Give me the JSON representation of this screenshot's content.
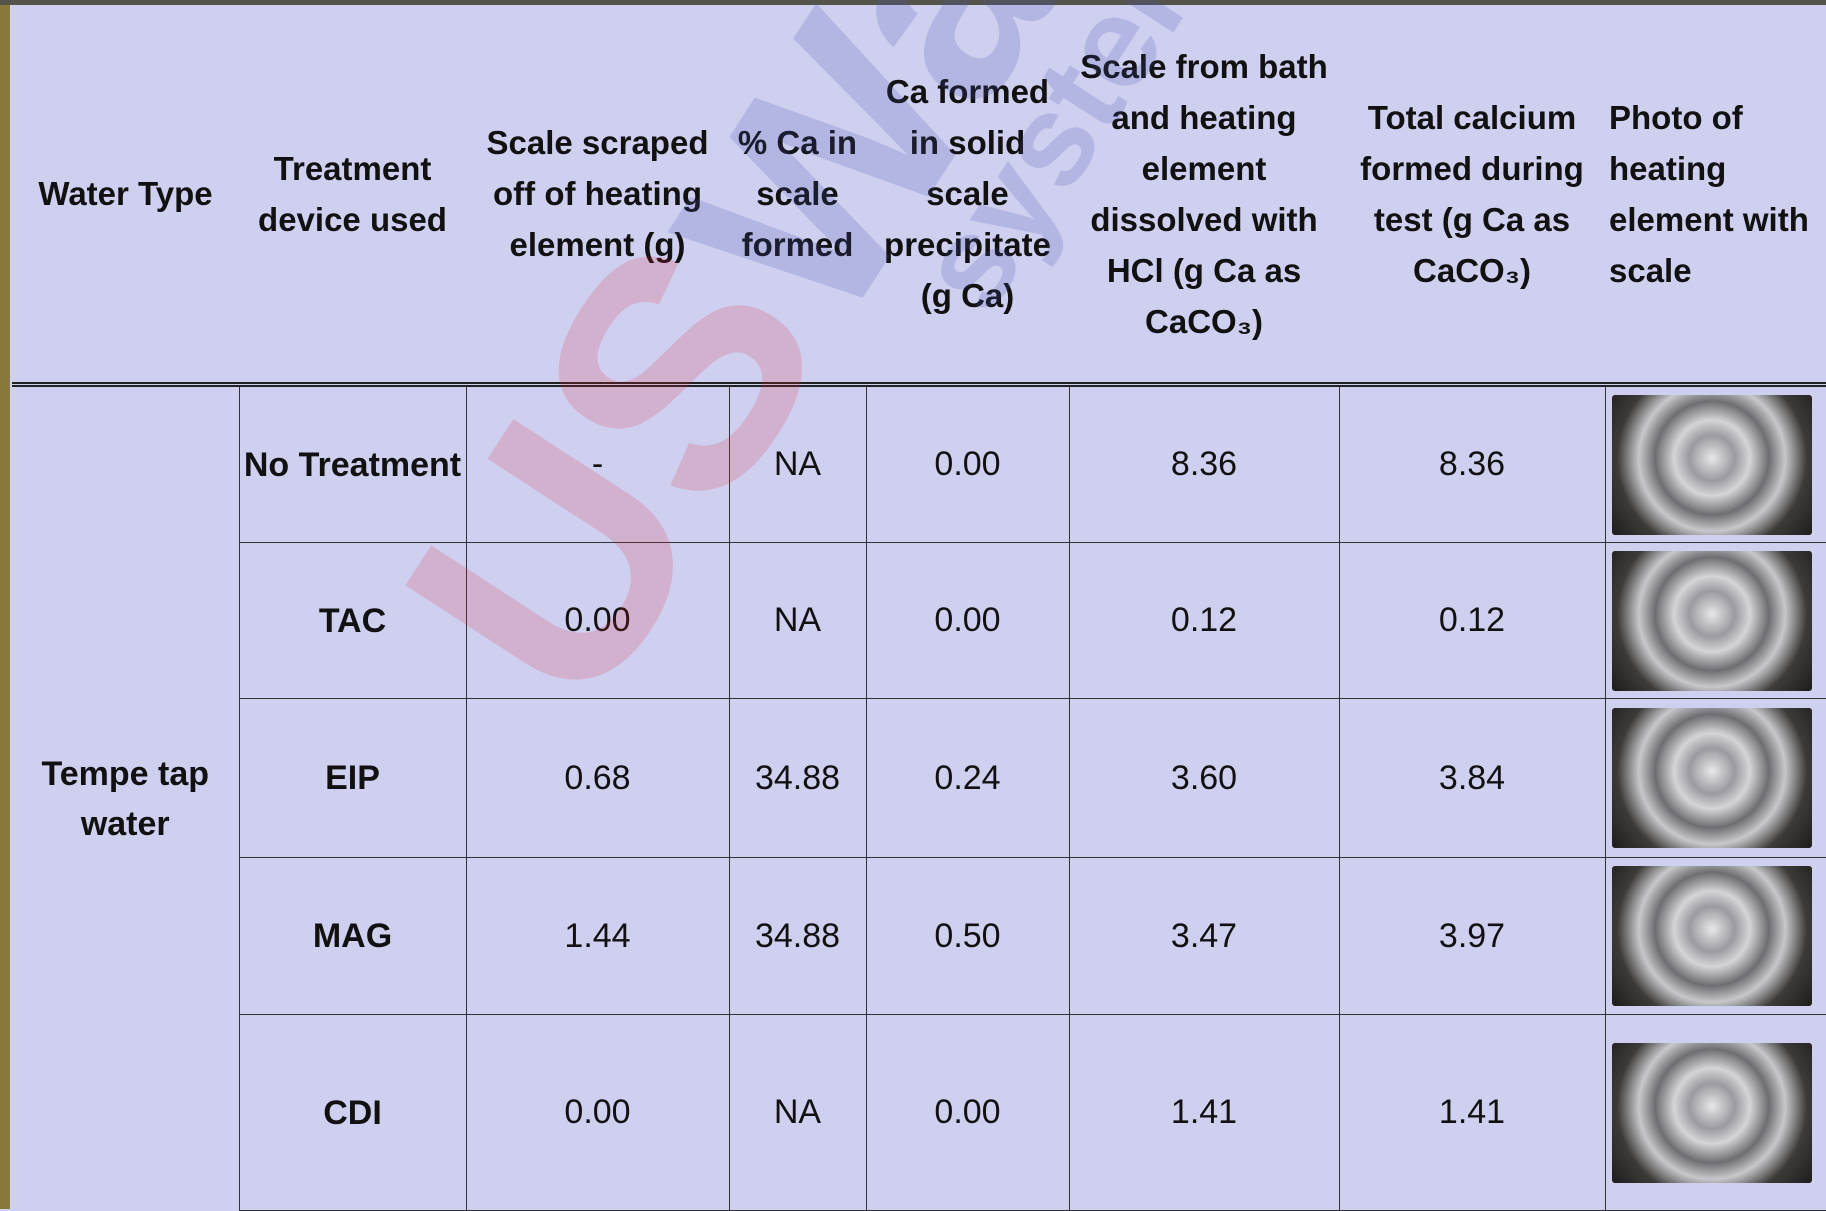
{
  "table": {
    "headers": [
      "Water Type",
      "Treatment device used",
      "Scale scraped off of heating element (g)",
      "% Ca in scale formed",
      "Ca formed in solid scale precipitate (g Ca)",
      "Scale from bath and heating element dissolved with HCl (g Ca as CaCO₃)",
      "Total calcium formed during test (g Ca as CaCO₃)",
      "Photo of heating element with scale"
    ],
    "water_type": "Tempe tap water",
    "rows": [
      [
        "No Treatment",
        "-",
        "NA",
        "0.00",
        "8.36",
        "8.36"
      ],
      [
        "TAC",
        "0.00",
        "NA",
        "0.00",
        "0.12",
        "0.12"
      ],
      [
        "EIP",
        "0.68",
        "34.88",
        "0.24",
        "3.60",
        "3.84"
      ],
      [
        "MAG",
        "1.44",
        "34.88",
        "0.50",
        "3.47",
        "3.97"
      ],
      [
        "CDI",
        "0.00",
        "NA",
        "0.00",
        "1.41",
        "1.41"
      ]
    ]
  },
  "watermark": {
    "brand": "US",
    "name": "Water",
    "site": "systems.com"
  }
}
